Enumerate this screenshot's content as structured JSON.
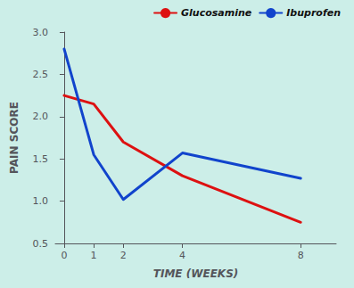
{
  "chart_data": {
    "type": "line",
    "x": [
      0,
      1,
      2,
      4,
      8
    ],
    "series": [
      {
        "name": "Glucosamine",
        "color": "#dd1111",
        "values": [
          2.25,
          2.15,
          1.7,
          1.3,
          0.75
        ]
      },
      {
        "name": "Ibuprofen",
        "color": "#1144cc",
        "values": [
          2.8,
          1.55,
          1.02,
          1.57,
          1.27
        ]
      }
    ],
    "x_label": "TIME (WEEKS)",
    "y_label": "PAIN SCORE",
    "xlim": [
      -0.3,
      9.2
    ],
    "xticks": [
      0,
      1,
      2,
      4,
      8
    ],
    "ylim": [
      0.5,
      3.0
    ],
    "yticks": [
      0.5,
      {
        "value": 1.0,
        "label": "1.0"
      },
      1.5,
      {
        "value": 2.0,
        "label": "2.0"
      },
      2.5,
      {
        "value": 3.0,
        "label": "3.0"
      }
    ],
    "grid": false,
    "legend": "upper right"
  }
}
